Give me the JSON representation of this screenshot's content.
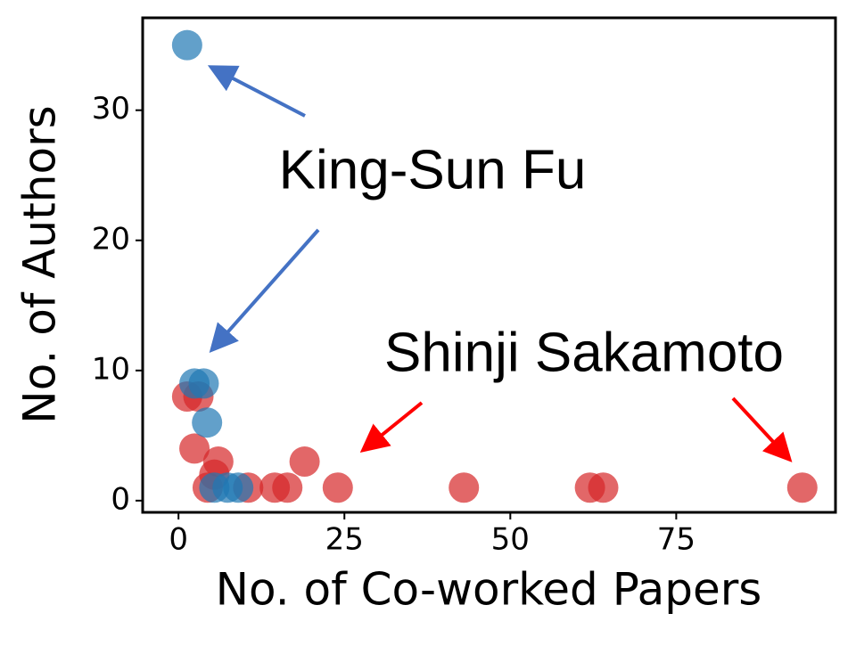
{
  "chart_data": {
    "type": "scatter",
    "xlabel": "No. of Co-worked Papers",
    "ylabel": "No. of Authors",
    "xlim": [
      -5.4,
      99
    ],
    "ylim": [
      -0.9,
      37.1
    ],
    "xticks": [
      0,
      25,
      50,
      75
    ],
    "yticks": [
      0,
      10,
      20,
      30
    ],
    "series": [
      {
        "color": "#d62728",
        "x": [
          1.3,
          3,
          2.4,
          6,
          5.4,
          4.4,
          10.5,
          14.5,
          16.4,
          19,
          24,
          43,
          62,
          64,
          94
        ],
        "values": [
          8,
          8,
          4,
          3,
          2,
          1,
          1,
          1,
          1,
          3,
          1,
          1,
          1,
          1,
          1
        ]
      },
      {
        "color": "#1f77b4",
        "x": [
          1.3,
          2.4,
          3.8,
          4.3,
          5.4,
          7.4,
          9
        ],
        "values": [
          35,
          9,
          9,
          6,
          1,
          1,
          1
        ]
      }
    ],
    "annotations": [
      {
        "text": "King-Sun Fu",
        "color": "#4472c4"
      },
      {
        "text": "Shinji Sakamoto",
        "color": "#ff0000"
      }
    ]
  }
}
